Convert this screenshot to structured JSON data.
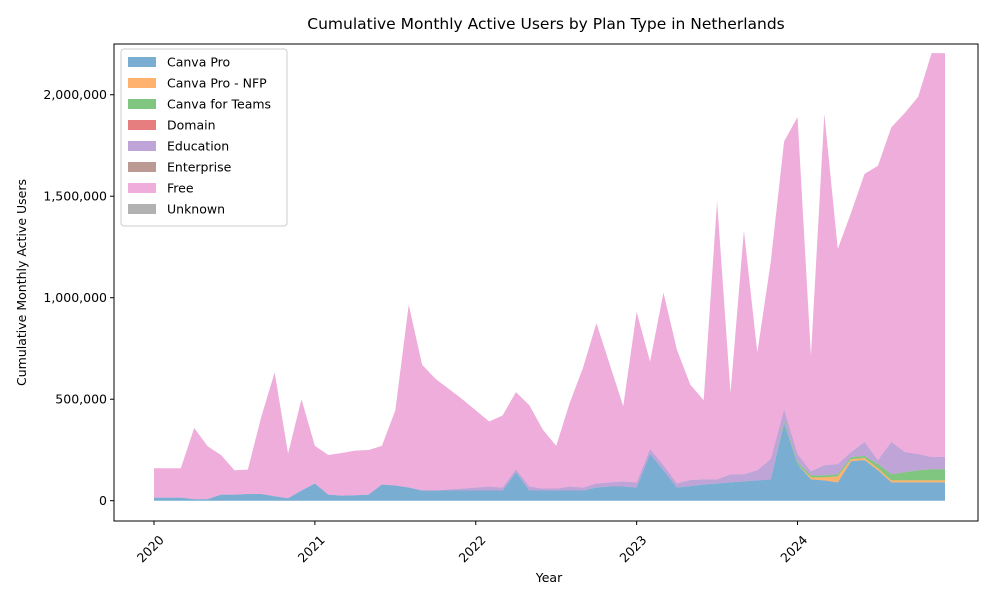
{
  "chart_data": {
    "type": "area",
    "stacked": true,
    "title": "Cumulative Monthly Active Users by Plan Type in Netherlands",
    "xlabel": "Year",
    "ylabel": "Cumulative Monthly Active Users",
    "x_start": "2020-01",
    "x_end": "2024-12",
    "x_ticks": [
      "2020",
      "2021",
      "2022",
      "2023",
      "2024"
    ],
    "x_tick_dates": [
      "2020-01",
      "2021-01",
      "2022-01",
      "2023-01",
      "2024-01"
    ],
    "y_ticks": [
      0,
      500000,
      1000000,
      1500000,
      2000000
    ],
    "y_tick_labels": [
      "0",
      "500,000",
      "1,000,000",
      "1,500,000",
      "2,000,000"
    ],
    "ylim": [
      -100000,
      2250000
    ],
    "grid": false,
    "legend_position": "top-left",
    "series": [
      {
        "name": "Canva Pro",
        "color": "#1f77b4",
        "values": [
          15000,
          15000,
          15000,
          8000,
          8000,
          30000,
          30000,
          33000,
          33000,
          22000,
          12000,
          50000,
          85000,
          30000,
          25000,
          27000,
          30000,
          80000,
          75000,
          65000,
          50000,
          50000,
          50000,
          50000,
          50000,
          50000,
          50000,
          140000,
          50000,
          50000,
          50000,
          50000,
          50000,
          65000,
          70000,
          70000,
          65000,
          230000,
          150000,
          65000,
          72000,
          80000,
          85000,
          90000,
          95000,
          100000,
          105000,
          380000,
          180000,
          105000,
          100000,
          90000,
          195000,
          200000,
          150000,
          90000,
          90000,
          90000,
          90000,
          90000
        ]
      },
      {
        "name": "Canva Pro - NFP",
        "color": "#ff7f0e",
        "values": [
          0,
          0,
          0,
          0,
          0,
          0,
          0,
          0,
          0,
          0,
          0,
          0,
          0,
          0,
          0,
          0,
          0,
          0,
          0,
          0,
          0,
          0,
          0,
          0,
          0,
          0,
          0,
          0,
          0,
          0,
          0,
          0,
          0,
          0,
          0,
          0,
          0,
          0,
          0,
          0,
          0,
          0,
          0,
          0,
          0,
          0,
          0,
          0,
          0,
          10000,
          15000,
          30000,
          10000,
          10000,
          10000,
          10000,
          10000,
          10000,
          10000,
          10000
        ]
      },
      {
        "name": "Canva for Teams",
        "color": "#2ca02c",
        "values": [
          0,
          0,
          0,
          0,
          0,
          0,
          0,
          0,
          0,
          0,
          0,
          0,
          0,
          0,
          0,
          0,
          0,
          0,
          0,
          0,
          0,
          0,
          0,
          0,
          0,
          0,
          0,
          0,
          0,
          0,
          0,
          0,
          0,
          0,
          0,
          0,
          0,
          0,
          0,
          0,
          0,
          0,
          0,
          0,
          0,
          0,
          0,
          10000,
          10000,
          10000,
          10000,
          10000,
          10000,
          10000,
          20000,
          30000,
          40000,
          50000,
          55000,
          55000
        ]
      },
      {
        "name": "Domain",
        "color": "#d62728",
        "values": [
          0,
          0,
          0,
          0,
          0,
          0,
          0,
          0,
          0,
          0,
          0,
          0,
          0,
          0,
          0,
          0,
          0,
          0,
          0,
          0,
          0,
          0,
          0,
          0,
          0,
          0,
          0,
          0,
          0,
          0,
          0,
          0,
          0,
          0,
          0,
          0,
          0,
          0,
          0,
          0,
          0,
          0,
          0,
          0,
          0,
          0,
          0,
          0,
          0,
          0,
          0,
          0,
          0,
          0,
          0,
          0,
          0,
          0,
          0,
          0
        ]
      },
      {
        "name": "Education",
        "color": "#9467bd",
        "values": [
          0,
          0,
          0,
          0,
          0,
          0,
          0,
          0,
          0,
          0,
          0,
          0,
          0,
          0,
          0,
          0,
          0,
          0,
          0,
          0,
          0,
          0,
          5000,
          10000,
          15000,
          20000,
          15000,
          15000,
          20000,
          10000,
          10000,
          20000,
          15000,
          20000,
          20000,
          25000,
          25000,
          25000,
          25000,
          20000,
          30000,
          25000,
          20000,
          40000,
          35000,
          50000,
          100000,
          60000,
          40000,
          20000,
          50000,
          50000,
          25000,
          70000,
          20000,
          160000,
          100000,
          80000,
          60000,
          60000
        ]
      },
      {
        "name": "Enterprise",
        "color": "#8c564b",
        "values": [
          0,
          0,
          0,
          0,
          0,
          0,
          0,
          0,
          0,
          0,
          0,
          0,
          0,
          0,
          0,
          0,
          0,
          0,
          0,
          0,
          0,
          0,
          0,
          0,
          0,
          0,
          0,
          0,
          0,
          0,
          0,
          0,
          0,
          0,
          0,
          0,
          0,
          0,
          0,
          0,
          0,
          0,
          0,
          0,
          0,
          0,
          0,
          0,
          0,
          0,
          0,
          0,
          0,
          0,
          0,
          0,
          0,
          0,
          0,
          0
        ]
      },
      {
        "name": "Free",
        "color": "#e377c2",
        "values": [
          145000,
          145000,
          145000,
          350000,
          260000,
          195000,
          120000,
          120000,
          380000,
          610000,
          220000,
          450000,
          185000,
          195000,
          210000,
          220000,
          220000,
          190000,
          370000,
          900000,
          620000,
          550000,
          495000,
          440000,
          380000,
          320000,
          355000,
          380000,
          400000,
          290000,
          210000,
          410000,
          590000,
          790000,
          580000,
          370000,
          840000,
          430000,
          850000,
          660000,
          470000,
          390000,
          1370000,
          400000,
          1200000,
          580000,
          970000,
          1320000,
          1660000,
          570000,
          1730000,
          1060000,
          1180000,
          1320000,
          1450000,
          1550000,
          1670000,
          1760000,
          1990000,
          1990000
        ]
      },
      {
        "name": "Unknown",
        "color": "#7f7f7f",
        "values": [
          0,
          0,
          0,
          0,
          0,
          0,
          0,
          0,
          0,
          0,
          0,
          0,
          0,
          0,
          0,
          0,
          0,
          0,
          0,
          0,
          0,
          0,
          0,
          0,
          0,
          0,
          0,
          0,
          0,
          0,
          0,
          0,
          0,
          0,
          0,
          0,
          0,
          0,
          0,
          0,
          0,
          0,
          0,
          0,
          0,
          0,
          0,
          0,
          0,
          0,
          0,
          0,
          0,
          0,
          0,
          0,
          0,
          0,
          0,
          0
        ]
      }
    ]
  }
}
